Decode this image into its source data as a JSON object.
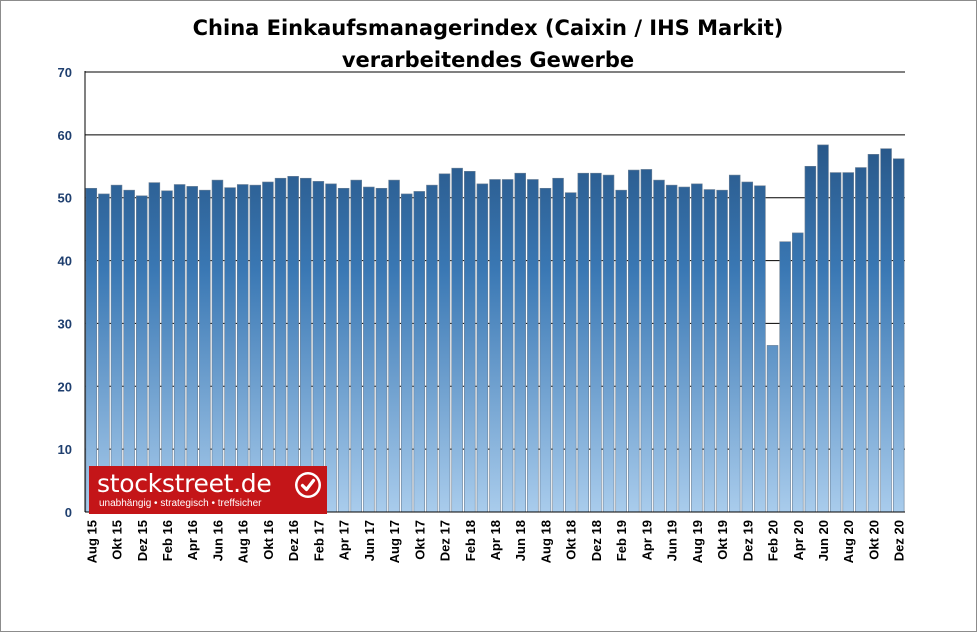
{
  "chart_data": {
    "type": "bar",
    "title": "China Einkaufsmanagerindex (Caixin / IHS Markit)",
    "subtitle": "verarbeitendes Gewerbe",
    "xlabel": "",
    "ylabel": "",
    "ylim": [
      0,
      70
    ],
    "yticks": [
      0,
      10,
      20,
      30,
      40,
      50,
      60,
      70
    ],
    "grid": true,
    "legend": "none",
    "categories": [
      "Aug 15",
      "Sep 15",
      "Okt 15",
      "Nov 15",
      "Dez 15",
      "Jan 16",
      "Feb 16",
      "Mrz 16",
      "Apr 16",
      "Mai 16",
      "Jun 16",
      "Jul 16",
      "Aug 16",
      "Sep 16",
      "Okt 16",
      "Nov 16",
      "Dez 16",
      "Jan 17",
      "Feb 17",
      "Mrz 17",
      "Apr 17",
      "Mai 17",
      "Jun 17",
      "Jul 17",
      "Aug 17",
      "Sep 17",
      "Okt 17",
      "Nov 17",
      "Dez 17",
      "Jan 18",
      "Feb 18",
      "Mrz 18",
      "Apr 18",
      "Mai 18",
      "Jun 18",
      "Jul 18",
      "Aug 18",
      "Sep 18",
      "Okt 18",
      "Nov 18",
      "Dez 18",
      "Jan 19",
      "Feb 19",
      "Mrz 19",
      "Apr 19",
      "Mai 19",
      "Jun 19",
      "Jul 19",
      "Aug 19",
      "Sep 19",
      "Okt 19",
      "Nov 19",
      "Dez 19",
      "Jan 20",
      "Feb 20",
      "Mrz 20",
      "Apr 20",
      "Mai 20",
      "Jun 20",
      "Jul 20",
      "Aug 20",
      "Sep 20",
      "Okt 20",
      "Nov 20",
      "Dez 20"
    ],
    "tick_labels": [
      "Aug 15",
      "Okt 15",
      "Dez 15",
      "Feb 16",
      "Apr 16",
      "Jun 16",
      "Aug 16",
      "Okt 16",
      "Dez 16",
      "Feb 17",
      "Apr 17",
      "Jun 17",
      "Aug 17",
      "Okt 17",
      "Dez 17",
      "Feb 18",
      "Apr 18",
      "Jun 18",
      "Aug 18",
      "Okt 18",
      "Dez 18",
      "Feb 19",
      "Apr 19",
      "Jun 19",
      "Aug 19",
      "Okt 19",
      "Dez 19",
      "Feb 20",
      "Apr 20",
      "Jun 20",
      "Aug 20",
      "Okt 20",
      "Dez 20"
    ],
    "values": [
      51.5,
      50.6,
      52.0,
      51.2,
      50.3,
      52.4,
      51.1,
      52.1,
      51.8,
      51.2,
      52.8,
      51.6,
      52.1,
      52.0,
      52.5,
      53.1,
      53.4,
      53.1,
      52.6,
      52.2,
      51.5,
      52.8,
      51.7,
      51.5,
      52.8,
      50.6,
      51.0,
      52.0,
      53.8,
      54.7,
      54.2,
      52.2,
      52.9,
      52.9,
      53.9,
      52.9,
      51.5,
      53.1,
      50.8,
      53.9,
      53.9,
      53.6,
      51.2,
      54.4,
      54.5,
      52.8,
      52.0,
      51.7,
      52.2,
      51.3,
      51.2,
      53.6,
      52.5,
      51.9,
      26.5,
      43.0,
      44.4,
      55.0,
      58.4,
      54.0,
      54.0,
      54.8,
      56.9,
      57.8,
      56.2
    ],
    "bar_color_top": "#1e4570",
    "bar_color_mid": "#3a78b4",
    "bar_color_bottom": "#a9ccec"
  },
  "logo": {
    "name": "stockstreet.de",
    "slogan": "unabhängig • strategisch • treffsicher",
    "color": "#c41518",
    "icon": "checkmark-icon"
  }
}
